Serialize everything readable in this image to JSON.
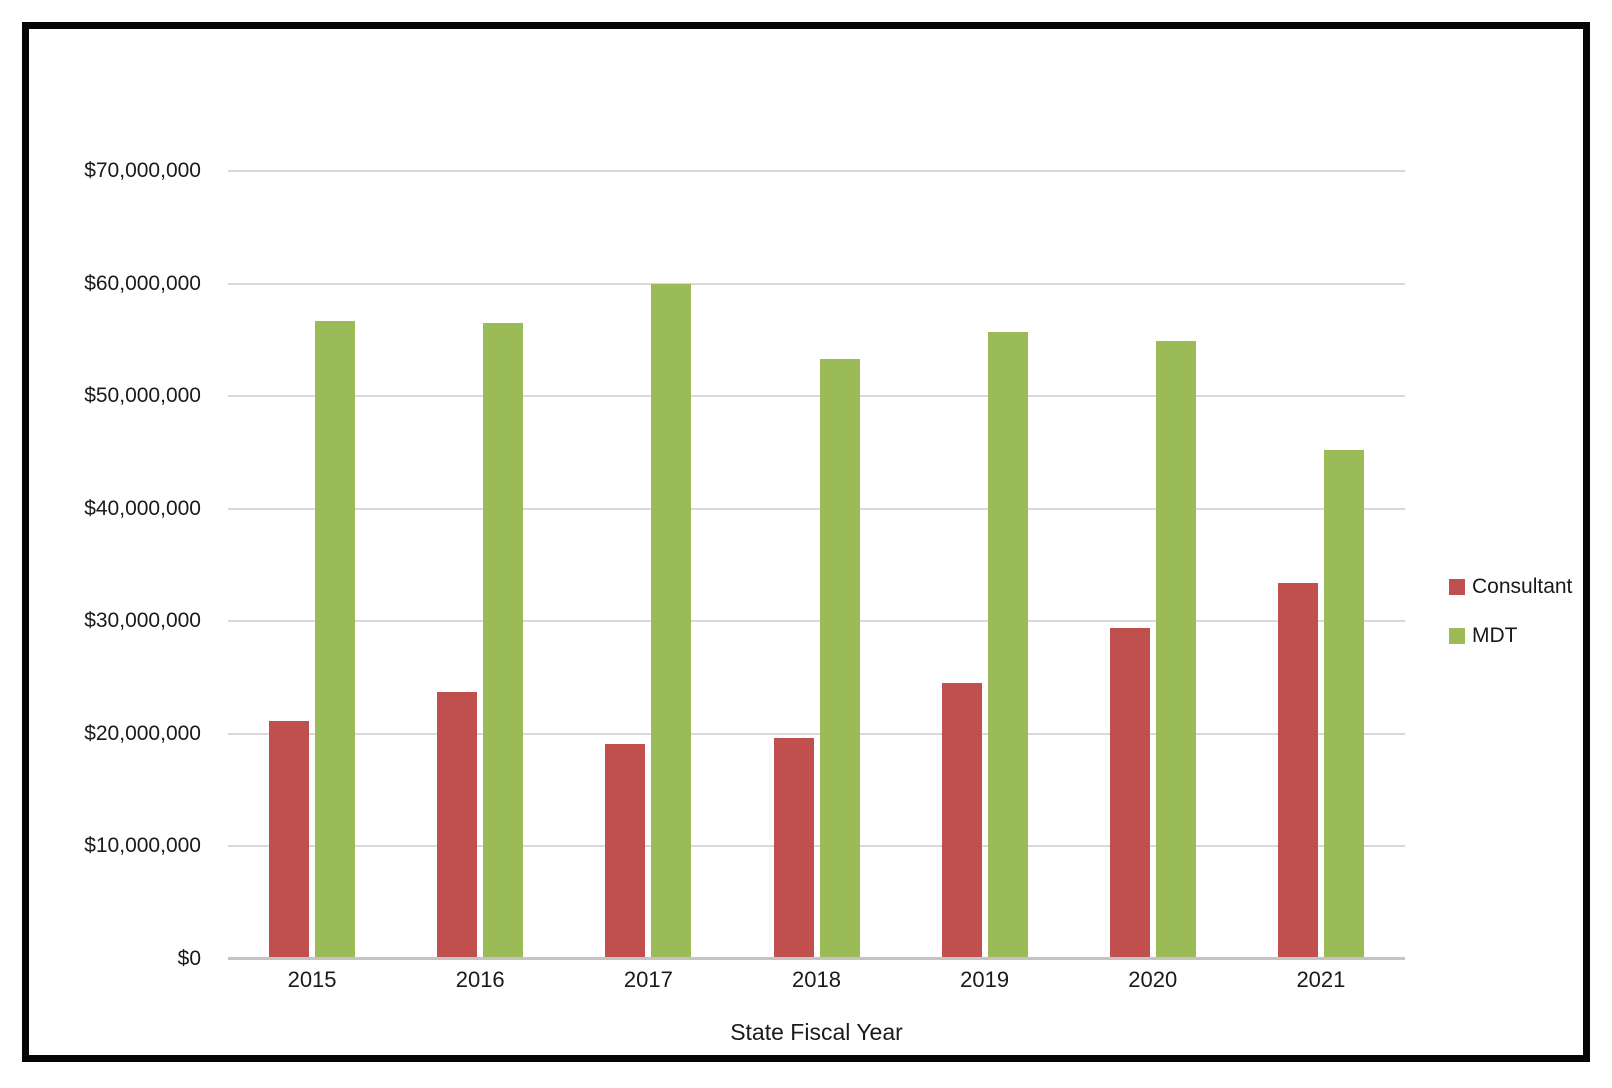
{
  "chart_data": {
    "type": "bar",
    "title": "",
    "xlabel": "State Fiscal Year",
    "ylabel": "",
    "categories": [
      "2015",
      "2016",
      "2017",
      "2018",
      "2019",
      "2020",
      "2021"
    ],
    "series": [
      {
        "name": "Consultant",
        "color": "#C0504D",
        "values": [
          21100000,
          23700000,
          19100000,
          19600000,
          24500000,
          29400000,
          33400000
        ]
      },
      {
        "name": "MDT",
        "color": "#9BBB59",
        "values": [
          56700000,
          56500000,
          60000000,
          53300000,
          55700000,
          54900000,
          45200000
        ]
      }
    ],
    "ylim": [
      0,
      70000000
    ],
    "ytick_interval": 10000000,
    "ytick_labels": [
      "$0",
      "$10,000,000",
      "$20,000,000",
      "$30,000,000",
      "$40,000,000",
      "$50,000,000",
      "$60,000,000",
      "$70,000,000"
    ],
    "grid": "horizontal-gridlines-on",
    "legend_position": "right"
  },
  "styles": {
    "gridline_color": "#D9D9D9",
    "axis_line_color": "#C4C4C4",
    "frame_border_color": "#050505",
    "background_color": "#FFFFFF",
    "text_color": "#1A1A1A"
  }
}
